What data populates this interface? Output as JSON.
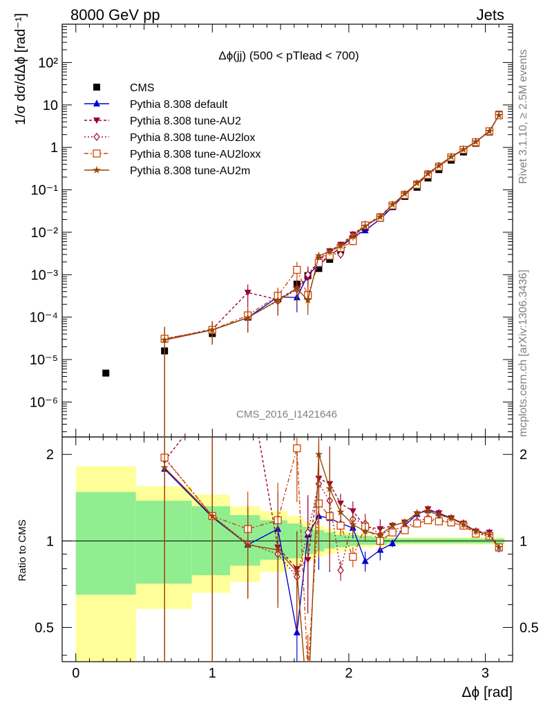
{
  "header": {
    "left": "8000 GeV pp",
    "right": "Jets"
  },
  "side_labels": {
    "rivet": "Rivet 3.1.10, ≥ 2.5M events",
    "mcplots": "mcplots.cern.ch [arXiv:1306.3436]"
  },
  "analysis_id": "CMS_2016_I1421646",
  "colors": {
    "cms": "#000000",
    "default": "#0000cc",
    "au2": "#990033",
    "au2lox": "#aa1133",
    "au2loxx": "#cc4400",
    "au2m": "#994400",
    "band_inner": "#90ee90",
    "band_outer": "#ffff99"
  },
  "chart_data": {
    "type": "line",
    "title": "Δϕ(jj) (500 < pTlead <  700)",
    "ylabel": "1/σ dσ/dΔϕ [rad⁻¹]",
    "xlabel": "Δϕ [rad]",
    "ratio_ylabel": "Ratio to CMS",
    "yscale": "log",
    "xlim": [
      -0.1,
      3.2
    ],
    "ylim": [
      1.5e-07,
      800
    ],
    "ratio_ylim": [
      0.38,
      2.3
    ],
    "ratio_scale": "log",
    "x_ticks": [
      "0",
      "1",
      "2",
      "3"
    ],
    "y_ticks": [
      "10⁻⁶",
      "10⁻⁵",
      "10⁻⁴",
      "10⁻³",
      "10⁻²",
      "10⁻¹",
      "1",
      "10",
      "10²"
    ],
    "ratio_ticks": [
      "0.5",
      "1",
      "2"
    ],
    "legend_position": "top-left",
    "x": [
      0.22,
      0.65,
      1.0,
      1.26,
      1.48,
      1.62,
      1.7,
      1.78,
      1.86,
      1.94,
      2.03,
      2.12,
      2.23,
      2.32,
      2.41,
      2.5,
      2.58,
      2.66,
      2.75,
      2.84,
      2.93,
      3.03,
      3.1
    ],
    "series": [
      {
        "name": "CMS",
        "key": "cms",
        "marker": "square",
        "values": [
          4.8e-06,
          1.6e-05,
          4.1e-05,
          0.0001,
          0.00027,
          0.0006,
          0.00095,
          0.0014,
          0.0023,
          0.0038,
          0.007,
          0.013,
          0.022,
          0.04,
          0.07,
          0.115,
          0.19,
          0.3,
          0.5,
          0.78,
          1.25,
          2.3,
          6.0
        ]
      },
      {
        "name": "Pythia 8.308 default",
        "key": "default",
        "marker": "triangle-up",
        "dash": "",
        "values": [
          null,
          2.9e-05,
          5e-05,
          9.7e-05,
          0.0003,
          0.00029,
          0.001,
          0.0017,
          0.0028,
          0.0044,
          0.0078,
          0.011,
          0.0205,
          0.039,
          0.079,
          0.14,
          0.24,
          0.37,
          0.6,
          0.9,
          1.35,
          2.4,
          5.7
        ]
      },
      {
        "name": "Pythia 8.308 tune-AU2",
        "key": "au2",
        "marker": "triangle-down",
        "dash": "4,3",
        "values": [
          null,
          3e-05,
          5.2e-05,
          0.00038,
          0.00026,
          0.00048,
          0.00082,
          0.0023,
          0.0036,
          0.0051,
          0.0089,
          0.0145,
          0.024,
          0.045,
          0.081,
          0.142,
          0.245,
          0.375,
          0.6,
          0.9,
          1.35,
          2.45,
          5.7
        ]
      },
      {
        "name": "Pythia 8.308 tune-AU2lox",
        "key": "au2lox",
        "marker": "diamond",
        "dash": "2,3",
        "values": [
          null,
          3.1e-05,
          5e-05,
          9.8e-05,
          0.00024,
          0.00045,
          0.001,
          0.0022,
          0.0032,
          0.003,
          0.0083,
          0.015,
          0.023,
          0.044,
          0.078,
          0.135,
          0.23,
          0.355,
          0.58,
          0.88,
          1.33,
          2.4,
          5.7
        ]
      },
      {
        "name": "Pythia 8.308 tune-AU2loxx",
        "key": "au2loxx",
        "marker": "square-open",
        "dash": "6,3,2,3",
        "values": [
          null,
          3.1e-05,
          5e-05,
          0.00011,
          0.00032,
          0.0013,
          0.00033,
          0.0019,
          0.0028,
          0.0043,
          0.0062,
          0.0145,
          0.022,
          0.043,
          0.076,
          0.132,
          0.225,
          0.35,
          0.58,
          0.88,
          1.32,
          2.4,
          5.7
        ]
      },
      {
        "name": "Pythia 8.308 tune-AU2m",
        "key": "au2m",
        "marker": "star",
        "dash": "",
        "values": [
          null,
          2.9e-05,
          5e-05,
          9.7e-05,
          0.00025,
          0.00047,
          0.00025,
          0.0028,
          0.0035,
          0.0048,
          0.008,
          0.014,
          0.023,
          0.045,
          0.081,
          0.144,
          0.24,
          0.37,
          0.6,
          0.89,
          1.35,
          2.4,
          5.7
        ]
      }
    ],
    "ratios": {
      "default": [
        null,
        1.78,
        1.21,
        0.97,
        1.1,
        0.48,
        1.05,
        1.22,
        1.2,
        1.15,
        1.11,
        0.85,
        0.93,
        0.98,
        1.13,
        1.24,
        1.28,
        1.25,
        1.2,
        1.15,
        1.08,
        1.05,
        0.94
      ],
      "au2": [
        null,
        1.9,
        3.1,
        3.8,
        0.95,
        0.8,
        0.86,
        1.65,
        1.58,
        1.35,
        1.27,
        1.12,
        1.1,
        1.13,
        1.16,
        1.24,
        1.29,
        1.25,
        1.2,
        1.15,
        1.08,
        1.07,
        0.95
      ],
      "au2lox": [
        null,
        1.94,
        1.22,
        0.98,
        0.9,
        0.75,
        1.07,
        1.58,
        1.38,
        0.79,
        1.19,
        1.15,
        1.05,
        1.1,
        1.11,
        1.17,
        1.2,
        1.18,
        1.16,
        1.13,
        1.07,
        1.04,
        0.95
      ],
      "au2loxx": [
        null,
        1.95,
        1.22,
        1.1,
        1.18,
        2.1,
        0.35,
        1.35,
        1.22,
        1.13,
        0.88,
        1.12,
        1.0,
        1.07,
        1.09,
        1.15,
        1.18,
        1.17,
        1.16,
        1.13,
        1.06,
        1.04,
        0.95
      ],
      "au2m": [
        null,
        1.8,
        1.22,
        0.97,
        0.93,
        0.78,
        0.26,
        2.0,
        1.52,
        1.26,
        1.14,
        1.08,
        1.05,
        1.13,
        1.16,
        1.25,
        1.27,
        1.23,
        1.2,
        1.14,
        1.08,
        1.05,
        0.95
      ]
    },
    "uncertainty_bands": {
      "edges": [
        0.0,
        0.44,
        0.85,
        1.13,
        1.35,
        1.55,
        1.66,
        1.74,
        1.82,
        1.9,
        1.99,
        2.07,
        2.17,
        2.28,
        2.37,
        2.46,
        2.54,
        2.62,
        2.71,
        2.8,
        2.88,
        2.98,
        3.08,
        3.14
      ],
      "inner_lo": [
        0.65,
        0.71,
        0.76,
        0.82,
        0.86,
        0.87,
        0.9,
        0.92,
        0.94,
        0.95,
        0.96,
        0.97,
        0.97,
        0.98,
        0.98,
        0.98,
        0.98,
        0.98,
        0.98,
        0.98,
        0.98,
        0.98,
        0.98
      ],
      "inner_hi": [
        1.48,
        1.38,
        1.32,
        1.23,
        1.18,
        1.15,
        1.12,
        1.09,
        1.07,
        1.05,
        1.05,
        1.04,
        1.03,
        1.02,
        1.02,
        1.02,
        1.02,
        1.02,
        1.02,
        1.02,
        1.02,
        1.02,
        1.02
      ],
      "outer_lo": [
        0.1,
        0.58,
        0.66,
        0.72,
        0.78,
        0.82,
        0.86,
        0.88,
        0.9,
        0.92,
        0.94,
        0.95,
        0.96,
        0.97,
        0.97,
        0.97,
        0.97,
        0.97,
        0.97,
        0.97,
        0.97,
        0.97,
        0.97
      ],
      "outer_hi": [
        1.82,
        1.55,
        1.45,
        1.32,
        1.27,
        1.22,
        1.17,
        1.13,
        1.1,
        1.08,
        1.07,
        1.05,
        1.04,
        1.03,
        1.03,
        1.03,
        1.03,
        1.03,
        1.03,
        1.03,
        1.03,
        1.03,
        1.03
      ]
    }
  }
}
